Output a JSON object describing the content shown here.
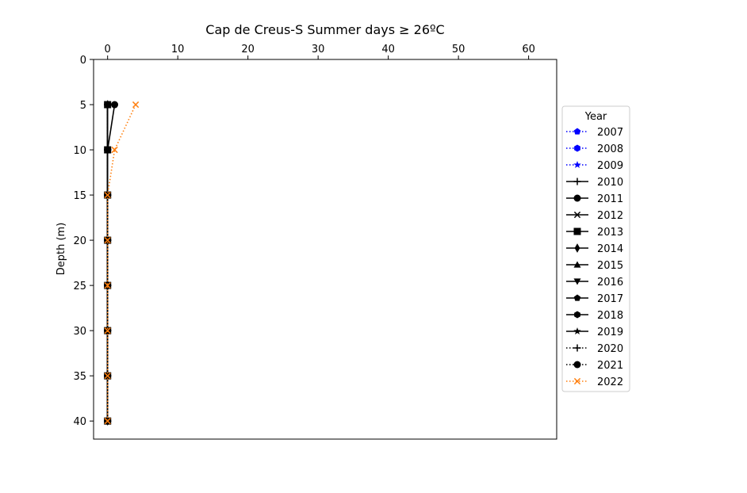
{
  "chart_data": {
    "type": "line",
    "title": "Cap de Creus-S Summer days ≥ 26ºC",
    "xlabel": "",
    "ylabel": "Depth (m)",
    "x_axis_position": "top",
    "xlim": [
      -2,
      64
    ],
    "ylim": [
      42,
      0
    ],
    "y_inverted": true,
    "xticks": [
      0,
      10,
      20,
      30,
      40,
      50,
      60
    ],
    "yticks": [
      0,
      5,
      10,
      15,
      20,
      25,
      30,
      35,
      40
    ],
    "grid": false,
    "depths": [
      5,
      10,
      15,
      20,
      25,
      30,
      35,
      40
    ],
    "legend": {
      "title": "Year",
      "placement": "center-right outside"
    },
    "series": [
      {
        "name": "2007",
        "color": "#0000ff",
        "dash": "dotted",
        "marker": "pentagon",
        "values": [
          null,
          null,
          null,
          null,
          null,
          null,
          null,
          null
        ]
      },
      {
        "name": "2008",
        "color": "#0000ff",
        "dash": "dotted",
        "marker": "hexagon",
        "values": [
          null,
          null,
          null,
          null,
          null,
          null,
          null,
          null
        ]
      },
      {
        "name": "2009",
        "color": "#0000ff",
        "dash": "dotted",
        "marker": "star",
        "values": [
          null,
          null,
          null,
          null,
          null,
          null,
          null,
          null
        ]
      },
      {
        "name": "2010",
        "color": "#000000",
        "dash": "solid",
        "marker": "plus",
        "values": [
          0,
          0,
          0,
          0,
          0,
          0,
          0,
          0
        ]
      },
      {
        "name": "2011",
        "color": "#000000",
        "dash": "solid",
        "marker": "circle",
        "values": [
          1,
          0,
          0,
          0,
          0,
          0,
          0,
          0
        ]
      },
      {
        "name": "2012",
        "color": "#000000",
        "dash": "solid",
        "marker": "x",
        "values": [
          0,
          0,
          0,
          0,
          0,
          0,
          0,
          0
        ]
      },
      {
        "name": "2013",
        "color": "#000000",
        "dash": "solid",
        "marker": "square",
        "values": [
          0,
          0,
          0,
          0,
          0,
          0,
          0,
          0
        ]
      },
      {
        "name": "2014",
        "color": "#000000",
        "dash": "solid",
        "marker": "diamond",
        "values": [
          0,
          0,
          0,
          0,
          0,
          0,
          0,
          0
        ]
      },
      {
        "name": "2015",
        "color": "#000000",
        "dash": "solid",
        "marker": "triangle-up",
        "values": [
          0,
          0,
          0,
          0,
          0,
          0,
          0,
          0
        ]
      },
      {
        "name": "2016",
        "color": "#000000",
        "dash": "solid",
        "marker": "triangle-down",
        "values": [
          0,
          0,
          0,
          0,
          0,
          0,
          0,
          0
        ]
      },
      {
        "name": "2017",
        "color": "#000000",
        "dash": "solid",
        "marker": "pentagon",
        "values": [
          0,
          0,
          0,
          0,
          0,
          0,
          0,
          0
        ]
      },
      {
        "name": "2018",
        "color": "#000000",
        "dash": "solid",
        "marker": "hexagon",
        "values": [
          0,
          0,
          0,
          0,
          0,
          0,
          0,
          0
        ]
      },
      {
        "name": "2019",
        "color": "#000000",
        "dash": "solid",
        "marker": "star",
        "values": [
          0,
          0,
          0,
          0,
          0,
          0,
          0,
          0
        ]
      },
      {
        "name": "2020",
        "color": "#000000",
        "dash": "dotted",
        "marker": "plus",
        "values": [
          0,
          0,
          0,
          0,
          0,
          0,
          0,
          0
        ]
      },
      {
        "name": "2021",
        "color": "#000000",
        "dash": "dotted",
        "marker": "circle",
        "values": [
          0,
          0,
          0,
          0,
          0,
          0,
          0,
          0
        ]
      },
      {
        "name": "2022",
        "color": "#ff7f0e",
        "dash": "dotted",
        "marker": "x",
        "values": [
          4,
          1,
          0,
          0,
          0,
          0,
          0,
          0
        ]
      }
    ]
  }
}
